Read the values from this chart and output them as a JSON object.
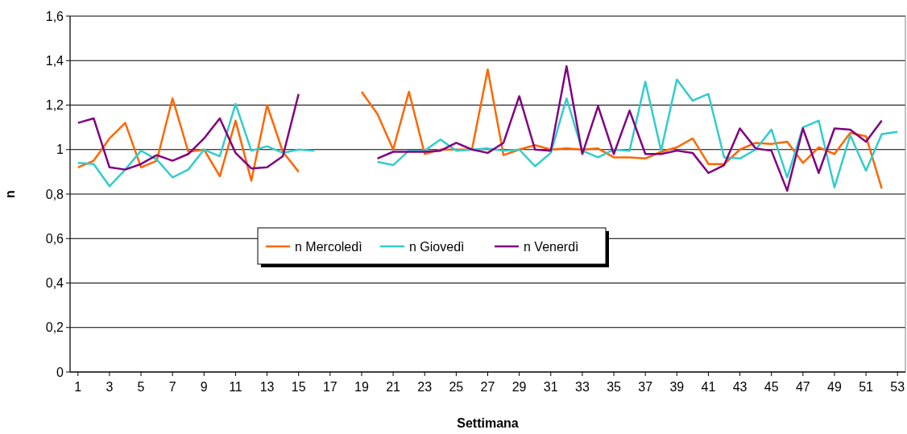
{
  "chart_data": {
    "type": "line",
    "xlabel": "Settimana",
    "ylabel": "n",
    "x": [
      1,
      2,
      3,
      4,
      5,
      6,
      7,
      8,
      9,
      10,
      11,
      12,
      13,
      14,
      15,
      16,
      17,
      18,
      19,
      20,
      21,
      22,
      23,
      24,
      25,
      26,
      27,
      28,
      29,
      30,
      31,
      32,
      33,
      34,
      35,
      36,
      37,
      38,
      39,
      40,
      41,
      42,
      43,
      44,
      45,
      46,
      47,
      48,
      49,
      50,
      51,
      52,
      53
    ],
    "xlim": [
      0.5,
      53.5
    ],
    "xticks": [
      1,
      3,
      5,
      7,
      9,
      11,
      13,
      15,
      17,
      19,
      21,
      23,
      25,
      27,
      29,
      31,
      33,
      35,
      37,
      39,
      41,
      43,
      45,
      47,
      49,
      51,
      53
    ],
    "ylim": [
      0,
      1.6
    ],
    "yticks": [
      {
        "value": 0,
        "label": "0"
      },
      {
        "value": 0.2,
        "label": "0,2"
      },
      {
        "value": 0.4,
        "label": "0,4"
      },
      {
        "value": 0.6,
        "label": "0,6"
      },
      {
        "value": 0.8,
        "label": "0,8"
      },
      {
        "value": 1,
        "label": "1"
      },
      {
        "value": 1.2,
        "label": "1,2"
      },
      {
        "value": 1.4,
        "label": "1,4"
      },
      {
        "value": 1.6,
        "label": "1,6"
      }
    ],
    "grid": "y",
    "legend": "center",
    "marker": "none",
    "line_style": "solid",
    "series": [
      {
        "name": "n Mercoledì",
        "color": "#ff6600",
        "values": [
          0.92,
          0.95,
          1.05,
          1.12,
          0.92,
          0.95,
          1.23,
          0.99,
          1.0,
          0.88,
          1.13,
          0.86,
          1.2,
          0.99,
          0.9,
          null,
          null,
          null,
          1.26,
          1.16,
          1.0,
          1.26,
          0.98,
          1.0,
          1.0,
          1.0,
          1.36,
          0.975,
          1.0,
          1.02,
          1.0,
          1.005,
          1.0,
          1.005,
          0.965,
          0.965,
          0.96,
          0.99,
          1.01,
          1.05,
          0.935,
          0.935,
          1.0,
          1.03,
          1.025,
          1.035,
          0.94,
          1.01,
          0.98,
          1.075,
          1.06,
          0.825,
          null
        ]
      },
      {
        "name": "n Giovedì",
        "color": "#33cccc",
        "values": [
          0.94,
          0.935,
          0.835,
          0.91,
          0.995,
          0.955,
          0.875,
          0.91,
          1.0,
          0.97,
          1.205,
          0.995,
          1.015,
          0.985,
          1.0,
          0.995,
          null,
          null,
          null,
          0.945,
          0.93,
          0.995,
          0.995,
          1.045,
          0.995,
          1.0,
          1.005,
          0.995,
          1.0,
          0.925,
          0.985,
          1.23,
          0.995,
          0.965,
          1.0,
          0.995,
          1.305,
          0.995,
          1.315,
          1.22,
          1.25,
          0.965,
          0.96,
          1.0,
          1.09,
          0.875,
          1.1,
          1.13,
          0.83,
          1.065,
          0.905,
          1.07,
          1.08
        ]
      },
      {
        "name": "n Venerdì",
        "color": "#800080",
        "values": [
          1.12,
          1.14,
          0.92,
          0.91,
          0.935,
          0.975,
          0.95,
          0.98,
          1.05,
          1.14,
          0.985,
          0.915,
          0.92,
          0.97,
          1.25,
          null,
          null,
          null,
          null,
          0.96,
          0.99,
          0.99,
          0.99,
          0.995,
          1.03,
          1.0,
          0.985,
          1.03,
          1.24,
          1.0,
          0.995,
          1.375,
          0.98,
          1.195,
          0.98,
          1.175,
          0.98,
          0.98,
          0.995,
          0.985,
          0.895,
          0.93,
          1.095,
          1.005,
          0.995,
          0.815,
          1.095,
          0.895,
          1.095,
          1.09,
          1.035,
          1.13,
          null
        ]
      }
    ]
  }
}
